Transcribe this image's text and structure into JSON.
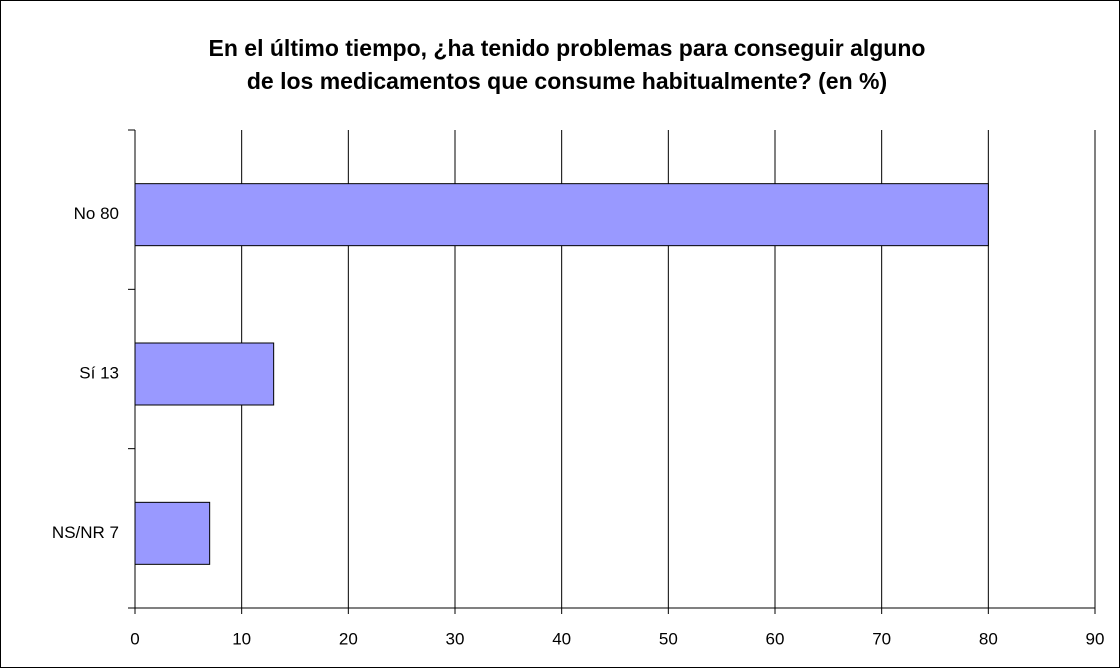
{
  "chart_data": {
    "type": "hbar",
    "title": [
      "En el último tiempo, ¿ha tenido problemas para conseguir alguno",
      "de los medicamentos que consume habitualmente? (en %)"
    ],
    "categories": [
      "No 80",
      "Sí 13",
      "NS/NR 7"
    ],
    "values": [
      80,
      13,
      7
    ],
    "color": "#9999ff",
    "xlim": [
      0,
      90
    ],
    "xticks": [
      0,
      10,
      20,
      30,
      40,
      50,
      60,
      70,
      80,
      90
    ],
    "grid": true
  }
}
